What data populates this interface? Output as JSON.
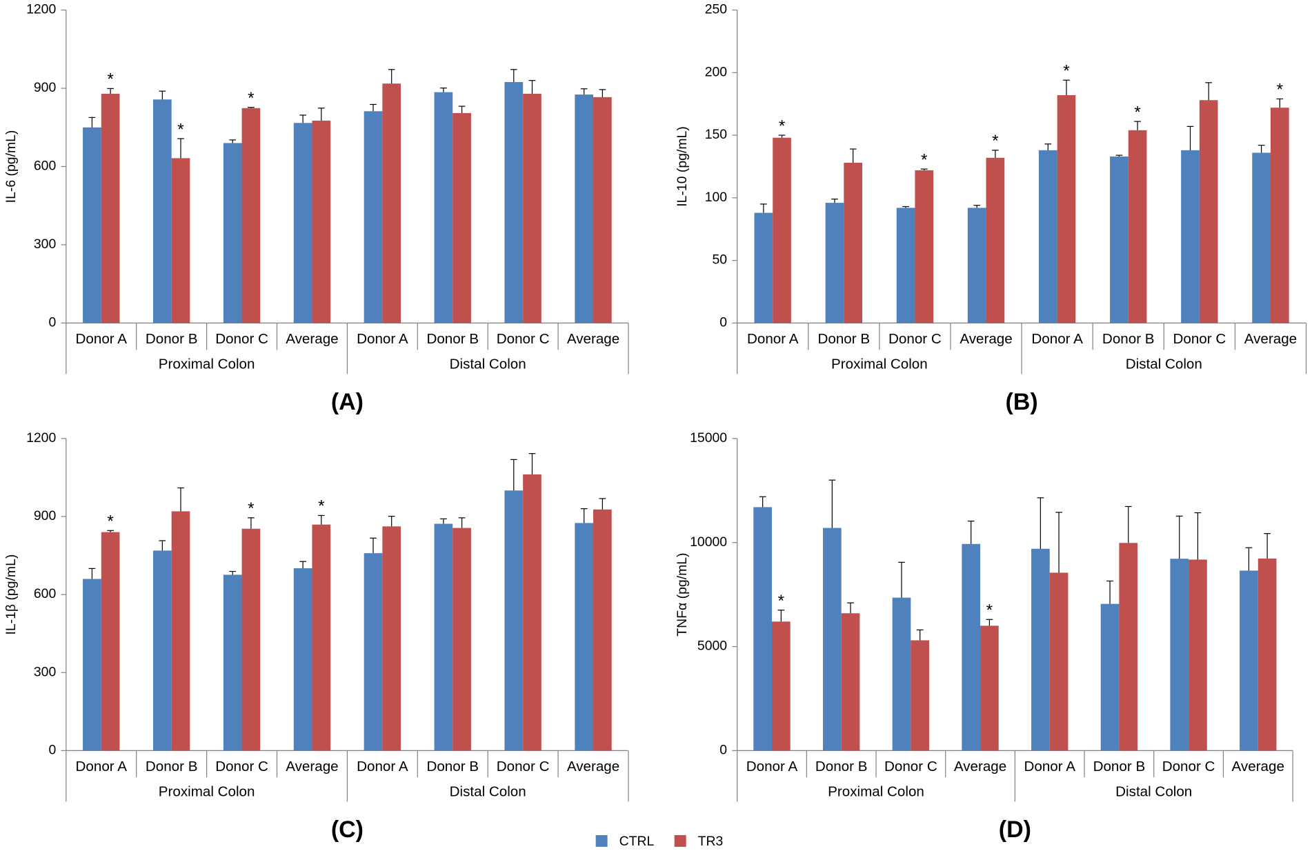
{
  "legend": {
    "series": [
      {
        "name": "CTRL",
        "color": "#4f81bd"
      },
      {
        "name": "TR3",
        "color": "#c0504d"
      }
    ]
  },
  "chart_data": [
    {
      "type": "bar",
      "panel": "(A)",
      "y_label": "IL-6 (pg/mL)",
      "groups": [
        {
          "name": "Proximal Colon",
          "categories": [
            "Donor A",
            "Donor B",
            "Donor C",
            "Average"
          ]
        },
        {
          "name": "Distal Colon",
          "categories": [
            "Donor A",
            "Donor B",
            "Donor C",
            "Average"
          ]
        }
      ],
      "ylim": [
        0,
        1200
      ],
      "yticks": [
        0,
        300,
        600,
        900,
        1200
      ],
      "series": [
        {
          "values": [
            750,
            857,
            690,
            767,
            812,
            885,
            924,
            876
          ],
          "errors": [
            38,
            32,
            12,
            30,
            26,
            16,
            48,
            22
          ],
          "annotations": [
            null,
            null,
            null,
            null,
            null,
            null,
            null,
            null
          ]
        },
        {
          "values": [
            879,
            632,
            824,
            776,
            918,
            805,
            879,
            866
          ],
          "errors": [
            20,
            75,
            3,
            48,
            54,
            26,
            51,
            29
          ],
          "annotations": [
            "*",
            "*",
            "*",
            null,
            null,
            null,
            null,
            null
          ]
        }
      ]
    },
    {
      "type": "bar",
      "panel": "(B)",
      "y_label": "IL-10 (pg/mL)",
      "groups": [
        {
          "name": "Proximal Colon",
          "categories": [
            "Donor A",
            "Donor B",
            "Donor C",
            "Average"
          ]
        },
        {
          "name": "Distal Colon",
          "categories": [
            "Donor A",
            "Donor B",
            "Donor C",
            "Average"
          ]
        }
      ],
      "ylim": [
        0,
        250
      ],
      "yticks": [
        0,
        50,
        100,
        150,
        200,
        250
      ],
      "series": [
        {
          "values": [
            88,
            96,
            92,
            92,
            138,
            133,
            138,
            136
          ],
          "errors": [
            7,
            3,
            1,
            2,
            5,
            1,
            19,
            6
          ],
          "annotations": [
            null,
            null,
            null,
            null,
            null,
            null,
            null,
            null
          ]
        },
        {
          "values": [
            148,
            128,
            122,
            132,
            182,
            154,
            178,
            172
          ],
          "errors": [
            2,
            11,
            1,
            6,
            12,
            7,
            14,
            7
          ],
          "annotations": [
            "*",
            null,
            "*",
            "*",
            "*",
            "*",
            null,
            "*"
          ]
        }
      ]
    },
    {
      "type": "bar",
      "panel": "(C)",
      "y_label": "IL-1β (pg/mL)",
      "groups": [
        {
          "name": "Proximal Colon",
          "categories": [
            "Donor A",
            "Donor B",
            "Donor C",
            "Average"
          ]
        },
        {
          "name": "Distal Colon",
          "categories": [
            "Donor A",
            "Donor B",
            "Donor C",
            "Average"
          ]
        }
      ],
      "ylim": [
        0,
        1200
      ],
      "yticks": [
        0,
        300,
        600,
        900,
        1200
      ],
      "series": [
        {
          "values": [
            660,
            769,
            676,
            701,
            759,
            872,
            1000,
            875
          ],
          "errors": [
            40,
            38,
            13,
            26,
            58,
            19,
            119,
            55
          ],
          "annotations": [
            null,
            null,
            null,
            null,
            null,
            null,
            null,
            null
          ]
        },
        {
          "values": [
            840,
            920,
            853,
            869,
            862,
            856,
            1062,
            927
          ],
          "errors": [
            6,
            90,
            42,
            35,
            39,
            39,
            80,
            42
          ],
          "annotations": [
            "*",
            null,
            "*",
            "*",
            null,
            null,
            null,
            null
          ]
        }
      ]
    },
    {
      "type": "bar",
      "panel": "(D)",
      "y_label": "TNFα (pg/mL)",
      "groups": [
        {
          "name": "Proximal Colon",
          "categories": [
            "Donor A",
            "Donor B",
            "Donor C",
            "Average"
          ]
        },
        {
          "name": "Distal Colon",
          "categories": [
            "Donor A",
            "Donor B",
            "Donor C",
            "Average"
          ]
        }
      ],
      "ylim": [
        0,
        15000
      ],
      "yticks": [
        0,
        5000,
        10000,
        15000
      ],
      "series": [
        {
          "values": [
            11700,
            10700,
            7350,
            9930,
            9700,
            7050,
            9220,
            8650
          ],
          "errors": [
            500,
            2300,
            1700,
            1100,
            2450,
            1100,
            2050,
            1100
          ],
          "annotations": [
            null,
            null,
            null,
            null,
            null,
            null,
            null,
            null
          ]
        },
        {
          "values": [
            6200,
            6600,
            5300,
            6000,
            8550,
            9980,
            9180,
            9230
          ],
          "errors": [
            550,
            500,
            500,
            300,
            2900,
            1750,
            2250,
            1200
          ],
          "annotations": [
            "*",
            null,
            null,
            "*",
            null,
            null,
            null,
            null
          ]
        }
      ]
    }
  ]
}
